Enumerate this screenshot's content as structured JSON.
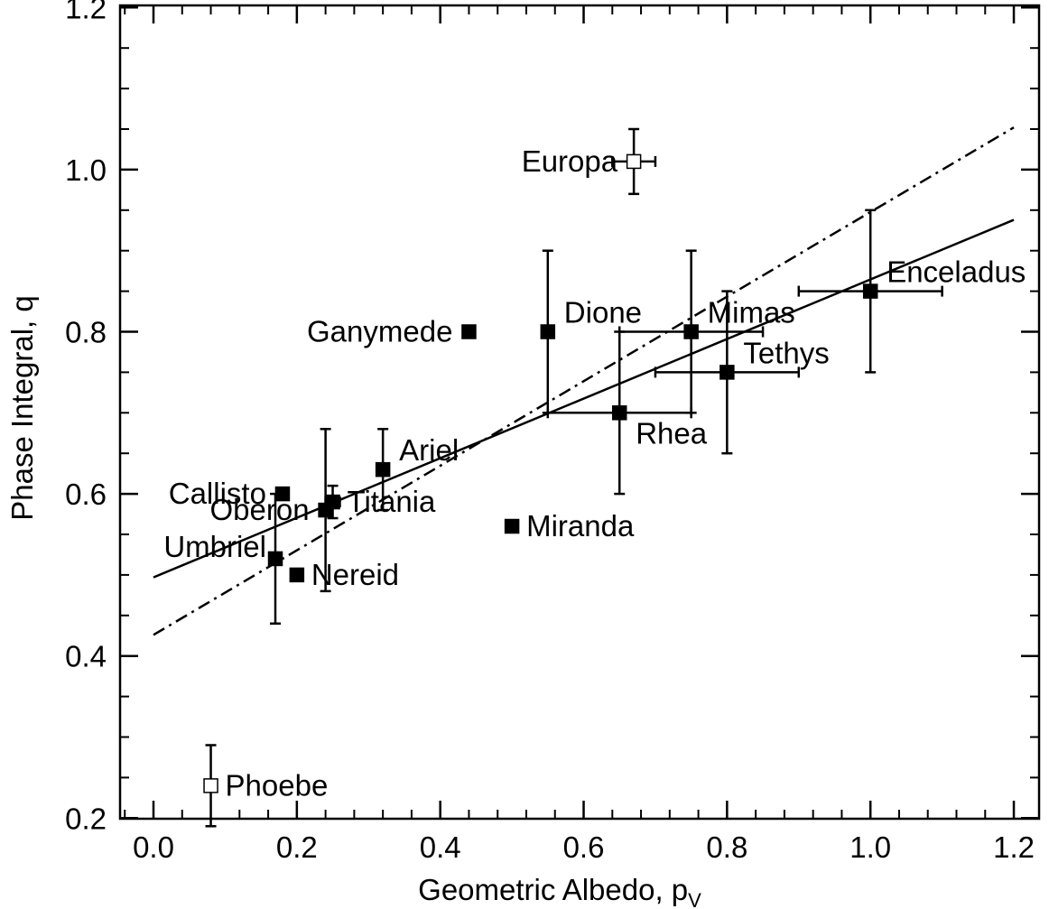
{
  "chart_data": {
    "type": "scatter",
    "xlabel_main": "Geometric Albedo, p",
    "xlabel_sub": "V",
    "ylabel": "Phase Integral, q",
    "xlim": [
      -0.04,
      1.21
    ],
    "ylim": [
      0.19,
      1.21
    ],
    "x_ticks": [
      {
        "value": 0.0,
        "label": "0.0"
      },
      {
        "value": 0.2,
        "label": "0.2"
      },
      {
        "value": 0.4,
        "label": "0.4"
      },
      {
        "value": 0.6,
        "label": "0.6"
      },
      {
        "value": 0.8,
        "label": "0.8"
      },
      {
        "value": 1.0,
        "label": "1.0"
      },
      {
        "value": 1.2,
        "label": "1.2"
      }
    ],
    "y_ticks": [
      {
        "value": 0.2,
        "label": "0.2"
      },
      {
        "value": 0.4,
        "label": "0.4"
      },
      {
        "value": 0.6,
        "label": "0.6"
      },
      {
        "value": 0.8,
        "label": "0.8"
      },
      {
        "value": 1.0,
        "label": "1.0"
      },
      {
        "value": 1.2,
        "label": "1.2"
      }
    ],
    "grid": false,
    "points": [
      {
        "name": "Europa",
        "x": 0.67,
        "y": 1.01,
        "xerr": 0.03,
        "yerr": 0.04,
        "marker": "open",
        "label_side": "left"
      },
      {
        "name": "Enceladus",
        "x": 1.0,
        "y": 0.85,
        "xerr": 0.1,
        "yerr": 0.1,
        "marker": "filled",
        "label_side": "above-right"
      },
      {
        "name": "Dione",
        "x": 0.55,
        "y": 0.8,
        "xerr": 0.0,
        "yerr": 0.1,
        "marker": "filled",
        "label_side": "above-right"
      },
      {
        "name": "Ganymede",
        "x": 0.44,
        "y": 0.8,
        "xerr": 0.0,
        "yerr": 0.0,
        "marker": "filled",
        "label_side": "left"
      },
      {
        "name": "Mimas",
        "x": 0.75,
        "y": 0.8,
        "xerr": 0.1,
        "yerr": 0.1,
        "marker": "filled",
        "label_side": "above-right"
      },
      {
        "name": "Tethys",
        "x": 0.8,
        "y": 0.75,
        "xerr": 0.1,
        "yerr": 0.1,
        "marker": "filled",
        "label_side": "above-right"
      },
      {
        "name": "Rhea",
        "x": 0.65,
        "y": 0.7,
        "xerr": 0.1,
        "yerr": 0.1,
        "marker": "filled",
        "label_side": "below-right"
      },
      {
        "name": "Ariel",
        "x": 0.32,
        "y": 0.63,
        "xerr": 0.0,
        "yerr": 0.05,
        "marker": "filled",
        "label_side": "above-right"
      },
      {
        "name": "Callisto",
        "x": 0.18,
        "y": 0.6,
        "xerr": 0.0,
        "yerr": 0.0,
        "marker": "filled",
        "label_side": "left"
      },
      {
        "name": "Titania",
        "x": 0.25,
        "y": 0.59,
        "xerr": 0.01,
        "yerr": 0.02,
        "marker": "filled",
        "label_side": "right"
      },
      {
        "name": "Oberon",
        "x": 0.24,
        "y": 0.58,
        "xerr": 0.0,
        "yerr": 0.1,
        "marker": "filled",
        "label_side": "left"
      },
      {
        "name": "Miranda",
        "x": 0.5,
        "y": 0.56,
        "xerr": 0.0,
        "yerr": 0.0,
        "marker": "filled",
        "label_side": "right"
      },
      {
        "name": "Umbriel",
        "x": 0.17,
        "y": 0.52,
        "xerr": 0.0,
        "yerr": 0.08,
        "marker": "filled",
        "label_side": "above-left"
      },
      {
        "name": "Nereid",
        "x": 0.2,
        "y": 0.5,
        "xerr": 0.0,
        "yerr": 0.0,
        "marker": "filled",
        "label_side": "right"
      },
      {
        "name": "Phoebe",
        "x": 0.08,
        "y": 0.24,
        "xerr": 0.0,
        "yerr": 0.05,
        "marker": "open",
        "label_side": "right"
      }
    ],
    "fit_lines": [
      {
        "style": "solid",
        "x": [
          0.0,
          1.2
        ],
        "y": [
          0.497,
          0.938
        ]
      },
      {
        "style": "dash-dot",
        "x": [
          0.0,
          1.2
        ],
        "y": [
          0.426,
          1.052
        ]
      }
    ]
  }
}
